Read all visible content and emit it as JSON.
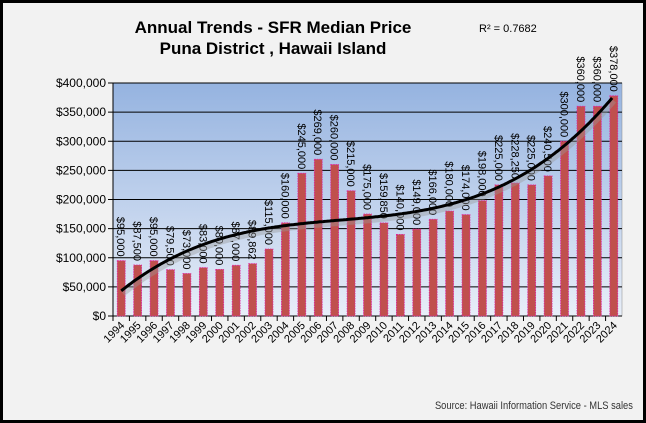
{
  "chart_data": {
    "type": "bar",
    "title": [
      "Annual Trends - SFR Median Price",
      "Puna District , Hawaii Island"
    ],
    "annotation": "R² = 0.7682",
    "source": "Source:  Hawaii Information Service - MLS sales",
    "categories": [
      "1994",
      "1995",
      "1996",
      "1997",
      "1998",
      "1999",
      "2000",
      "2001",
      "2002",
      "2003",
      "2004",
      "2005",
      "2006",
      "2007",
      "2008",
      "2009",
      "2010",
      "2011",
      "2012",
      "2013",
      "2014",
      "2015",
      "2016",
      "2017",
      "2018",
      "2019",
      "2020",
      "2021",
      "2022",
      "2023",
      "2024"
    ],
    "values": [
      95000,
      87500,
      95000,
      79500,
      73000,
      83000,
      80000,
      87000,
      89862,
      115000,
      160000,
      245000,
      269000,
      260000,
      215000,
      175000,
      159850,
      140000,
      149000,
      166000,
      180000,
      174000,
      198000,
      225000,
      228250,
      225000,
      240500,
      300000,
      360000,
      360000,
      378000
    ],
    "data_labels": [
      "$95,000",
      "$87,500",
      "$95,000",
      "$79,500",
      "$73,000",
      "$83,000",
      "$80,000",
      "$87,000",
      "$89,862",
      "$115,000",
      "$160,000",
      "$245,000",
      "$269,000",
      "$260,000",
      "$215,000",
      "$175,000",
      "$159,850",
      "$140,000",
      "$149,000",
      "$166,000",
      "$180,000",
      "$174,000",
      "$198,000",
      "$225,000",
      "$228,250",
      "$225,000",
      "$240,500",
      "$300,000",
      "$360,000",
      "$360,000",
      "$378,000"
    ],
    "trendline": "polynomial (order 3)",
    "yticks": [
      "$0",
      "$50,000",
      "$100,000",
      "$150,000",
      "$200,000",
      "$250,000",
      "$300,000",
      "$350,000",
      "$400,000"
    ],
    "ylim": [
      0,
      400000
    ],
    "grid": true,
    "colors": {
      "bar": "#c0504d",
      "bar_border": "#e020a0",
      "trend": "#000000",
      "plot_top": "#95b3e0",
      "plot_bottom": "#e8eef8",
      "background": "#f2f2f2"
    }
  }
}
